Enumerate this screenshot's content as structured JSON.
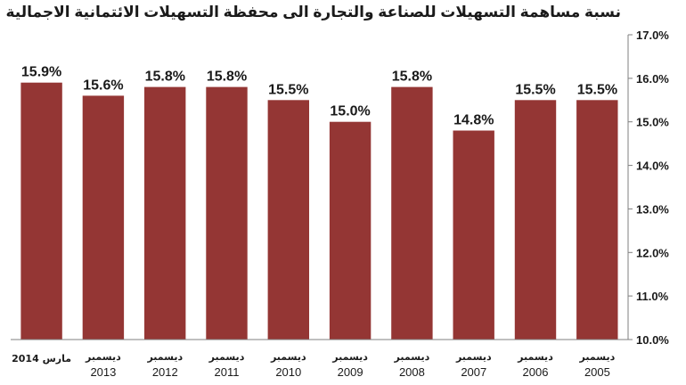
{
  "chart_data": {
    "type": "bar",
    "title": "نسبة مساهمة التسهيلات للصناعة والتجارة الى محفظة التسهيلات الائتمانية الاجمالية",
    "categories": [
      {
        "line1": "مارس 2014",
        "line2": ""
      },
      {
        "line1": "ديسمبر",
        "line2": "2013"
      },
      {
        "line1": "ديسمبر",
        "line2": "2012"
      },
      {
        "line1": "ديسمبر",
        "line2": "2011"
      },
      {
        "line1": "ديسمبر",
        "line2": "2010"
      },
      {
        "line1": "ديسمبر",
        "line2": "2009"
      },
      {
        "line1": "ديسمبر",
        "line2": "2008"
      },
      {
        "line1": "ديسمبر",
        "line2": "2007"
      },
      {
        "line1": "ديسمبر",
        "line2": "2006"
      },
      {
        "line1": "ديسمبر",
        "line2": "2005"
      }
    ],
    "values": [
      15.9,
      15.6,
      15.8,
      15.8,
      15.5,
      15.0,
      15.8,
      14.8,
      15.5,
      15.5
    ],
    "data_labels": [
      "15.9%",
      "15.6%",
      "15.8%",
      "15.8%",
      "15.5%",
      "15.0%",
      "15.8%",
      "14.8%",
      "15.5%",
      "15.5%"
    ],
    "ylim": [
      10.0,
      17.0
    ],
    "yticks": [
      10.0,
      11.0,
      12.0,
      13.0,
      14.0,
      15.0,
      16.0,
      17.0
    ],
    "ytick_labels": [
      "10.0%",
      "11.0%",
      "12.0%",
      "13.0%",
      "14.0%",
      "15.0%",
      "16.0%",
      "17.0%"
    ],
    "y_axis_side": "right",
    "grid": false,
    "legend": "none",
    "bar_color": "#943634"
  }
}
